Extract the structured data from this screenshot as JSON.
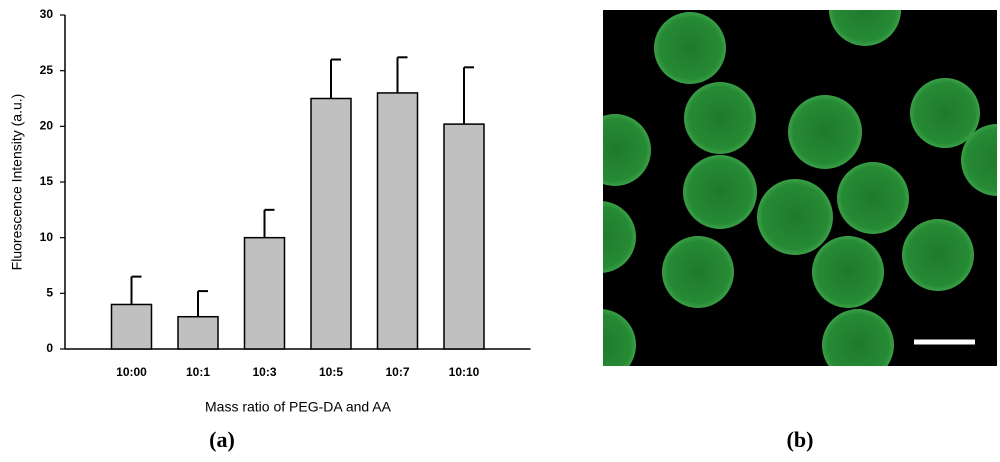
{
  "chart_data": {
    "type": "bar",
    "ylabel": "Fluorescence Intensity (a.u.)",
    "xlabel": "Mass ratio of PEG-DA and AA",
    "categories": [
      "10:00",
      "10:1",
      "10:3",
      "10:5",
      "10:7",
      "10:10"
    ],
    "values": [
      4,
      2.9,
      10,
      22.5,
      23,
      20.2
    ],
    "errors": [
      2.5,
      2.3,
      2.5,
      3.5,
      3.2,
      5.1
    ],
    "color": "#c0c0c0",
    "ylim": [
      0,
      30
    ],
    "yticks": [
      0,
      5,
      10,
      15,
      20,
      25,
      30
    ]
  },
  "captions": {
    "left": "(a)",
    "right": "(b)"
  }
}
